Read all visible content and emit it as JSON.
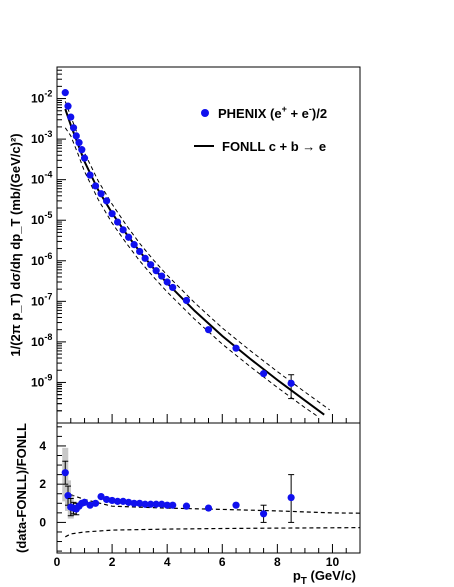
{
  "chart_data": [
    {
      "panel": "spectrum",
      "type": "scatter",
      "ylabel": "1/(2π p_T) dσ/dη dp_T (mb/(GeV/c)²)",
      "xlim": [
        0,
        11
      ],
      "ylim": [
        1e-10,
        0.06
      ],
      "yscale": "log",
      "grid": false,
      "legend_position": "top-right",
      "y_ticks": [
        {
          "value": 0.01,
          "mantissa": "10",
          "exp": "-2"
        },
        {
          "value": 0.001,
          "mantissa": "10",
          "exp": "-3"
        },
        {
          "value": 0.0001,
          "mantissa": "10",
          "exp": "-4"
        },
        {
          "value": 1e-05,
          "mantissa": "10",
          "exp": "-5"
        },
        {
          "value": 1e-06,
          "mantissa": "10",
          "exp": "-6"
        },
        {
          "value": 1e-07,
          "mantissa": "10",
          "exp": "-7"
        },
        {
          "value": 1e-08,
          "mantissa": "10",
          "exp": "-8"
        },
        {
          "value": 1e-09,
          "mantissa": "10",
          "exp": "-9"
        }
      ],
      "series": [
        {
          "name": "PHENIX (e⁺ + e⁻)/2",
          "kind": "points",
          "color": "#1010ee",
          "x": [
            0.3,
            0.4,
            0.5,
            0.6,
            0.7,
            0.8,
            0.9,
            1.0,
            1.2,
            1.4,
            1.6,
            1.8,
            2.0,
            2.2,
            2.4,
            2.6,
            2.8,
            3.0,
            3.2,
            3.4,
            3.6,
            3.8,
            4.0,
            4.2,
            4.7,
            5.5,
            6.5,
            7.5,
            8.5
          ],
          "y": [
            0.014,
            0.0065,
            0.0035,
            0.0019,
            0.0012,
            0.00082,
            0.00055,
            0.00034,
            0.00013,
            7e-05,
            4.5e-05,
            3e-05,
            1.45e-05,
            9e-06,
            5.8e-06,
            3.8e-06,
            2.5e-06,
            1.7e-06,
            1.15e-06,
            8e-07,
            5.7e-07,
            4.2e-07,
            3e-07,
            2.2e-07,
            1.05e-07,
            2e-08,
            7e-09,
            1.65e-09,
            9.5e-10
          ],
          "err_low": [
            null,
            null,
            null,
            null,
            null,
            null,
            null,
            null,
            null,
            null,
            null,
            null,
            null,
            null,
            null,
            null,
            null,
            null,
            null,
            null,
            null,
            null,
            null,
            null,
            null,
            null,
            null,
            null,
            4e-10
          ],
          "err_high": [
            null,
            null,
            null,
            null,
            null,
            null,
            null,
            null,
            null,
            null,
            null,
            null,
            null,
            null,
            null,
            null,
            null,
            null,
            null,
            null,
            null,
            null,
            null,
            null,
            null,
            null,
            null,
            null,
            1.55e-09
          ]
        },
        {
          "name": "FONLL c + b → e",
          "kind": "line",
          "style": "solid",
          "x": [
            0.3,
            0.5,
            0.75,
            1.0,
            1.5,
            2.0,
            2.5,
            3.0,
            3.5,
            4.0,
            5.0,
            6.0,
            7.0,
            8.0,
            9.0,
            9.7
          ],
          "y": [
            0.0055,
            0.0022,
            0.00078,
            0.00028,
            5.5e-05,
            1.5e-05,
            4.8e-06,
            1.7e-06,
            6.6e-07,
            2.8e-07,
            5.8e-08,
            1.4e-08,
            3.9e-09,
            1.15e-09,
            3.6e-10,
            1.6e-10
          ]
        },
        {
          "name": "FONLL upper uncertainty",
          "kind": "line",
          "style": "dashed",
          "x": [
            0.3,
            0.5,
            0.75,
            1.0,
            1.5,
            2.0,
            2.5,
            3.0,
            3.5,
            4.0,
            5.0,
            6.0,
            7.0,
            8.0,
            9.0,
            9.9
          ],
          "y": [
            0.0085,
            0.0036,
            0.0013,
            0.00046,
            9.2e-05,
            2.5e-05,
            7.8e-06,
            2.7e-06,
            1.05e-06,
            4.4e-07,
            9.2e-08,
            2.2e-08,
            6.2e-09,
            1.85e-09,
            5.8e-10,
            2.1e-10
          ]
        },
        {
          "name": "FONLL lower uncertainty",
          "kind": "line",
          "style": "dashed",
          "x": [
            0.3,
            0.5,
            0.75,
            1.0,
            1.5,
            2.0,
            2.5,
            3.0,
            3.5,
            4.0,
            5.0,
            6.0,
            7.0,
            8.0,
            9.0,
            9.5
          ],
          "y": [
            0.0019,
            0.0012,
            0.00045,
            0.00016,
            3.2e-05,
            8.5e-06,
            2.8e-06,
            1e-06,
            4e-07,
            1.7e-07,
            3.6e-08,
            8.8e-09,
            2.5e-09,
            7.5e-10,
            2.4e-10,
            1.4e-10
          ]
        }
      ],
      "legend": [
        {
          "label": "PHENIX (e",
          "sup1": "+",
          "mid": " + e",
          "sup2": "-",
          "tail": ")/2",
          "marker": "point"
        },
        {
          "label": "FONLL c + b → e",
          "marker": "line"
        }
      ]
    },
    {
      "panel": "ratio",
      "type": "scatter",
      "xlabel_main": "p",
      "xlabel_sub": "T",
      "xlabel_tail": " (GeV/c)",
      "ylabel": "(data-FONLL)/FONLL",
      "xlim": [
        0,
        11
      ],
      "ylim": [
        -1.6,
        5.2
      ],
      "grid": false,
      "x_ticks": [
        0,
        2,
        4,
        6,
        8,
        10
      ],
      "y_ticks": [
        0,
        2,
        4
      ],
      "series": [
        {
          "name": "ratio",
          "kind": "points",
          "color": "#1010ee",
          "x": [
            0.3,
            0.4,
            0.5,
            0.6,
            0.7,
            0.8,
            0.9,
            1.0,
            1.2,
            1.4,
            1.6,
            1.8,
            2.0,
            2.2,
            2.4,
            2.6,
            2.8,
            3.0,
            3.2,
            3.4,
            3.6,
            3.8,
            4.0,
            4.2,
            4.7,
            5.5,
            6.5,
            7.5,
            8.5
          ],
          "y": [
            2.6,
            1.4,
            0.8,
            0.75,
            0.7,
            0.85,
            1.0,
            1.05,
            0.9,
            1.0,
            1.35,
            1.2,
            1.15,
            1.1,
            1.1,
            1.05,
            1.0,
            1.0,
            0.95,
            0.95,
            0.95,
            0.95,
            0.9,
            0.9,
            0.85,
            0.75,
            0.9,
            0.45,
            1.3
          ],
          "err_low": [
            0.6,
            0.5,
            0.45,
            0.3,
            0.3,
            null,
            null,
            null,
            null,
            null,
            null,
            null,
            null,
            null,
            null,
            null,
            null,
            null,
            null,
            null,
            null,
            null,
            null,
            null,
            null,
            null,
            null,
            0.45,
            1.3
          ],
          "err_high": [
            0.6,
            0.5,
            0.45,
            0.3,
            0.3,
            null,
            null,
            null,
            null,
            null,
            null,
            null,
            null,
            null,
            null,
            null,
            null,
            null,
            null,
            null,
            null,
            null,
            null,
            null,
            null,
            null,
            null,
            0.45,
            1.2
          ],
          "sys_boxes": [
            {
              "x": 0.3,
              "low": 1.1,
              "high": 3.9
            },
            {
              "x": 0.4,
              "low": 0.6,
              "high": 2.2
            },
            {
              "x": 0.5,
              "low": 0.2,
              "high": 1.4
            }
          ]
        },
        {
          "name": "FONLL upper band",
          "kind": "line",
          "style": "dashed",
          "x": [
            0.3,
            0.5,
            1.0,
            2.0,
            4.0,
            6.0,
            8.0,
            10.0,
            11.0
          ],
          "y": [
            1.7,
            1.45,
            1.2,
            0.85,
            0.75,
            0.68,
            0.6,
            0.5,
            0.48
          ]
        },
        {
          "name": "FONLL lower band",
          "kind": "line",
          "style": "dashed",
          "x": [
            0.3,
            0.5,
            1.0,
            2.0,
            4.0,
            6.0,
            8.0,
            10.0,
            11.0
          ],
          "y": [
            -0.75,
            -0.6,
            -0.5,
            -0.4,
            -0.35,
            -0.32,
            -0.3,
            -0.28,
            -0.27
          ]
        }
      ]
    }
  ]
}
